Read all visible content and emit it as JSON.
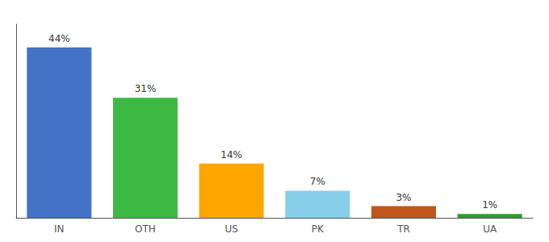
{
  "chart_data": {
    "type": "bar",
    "categories": [
      "IN",
      "OTH",
      "US",
      "PK",
      "TR",
      "UA"
    ],
    "values": [
      44,
      31,
      14,
      7,
      3,
      1
    ],
    "value_labels": [
      "44%",
      "31%",
      "14%",
      "7%",
      "3%",
      "1%"
    ],
    "colors": [
      "#4472c4",
      "#3cb943",
      "#ffa500",
      "#87ceeb",
      "#c0561a",
      "#2d9e2d"
    ],
    "ylim": [
      0,
      50
    ],
    "data_labels": true,
    "tick_labels": "x",
    "grid": false
  }
}
